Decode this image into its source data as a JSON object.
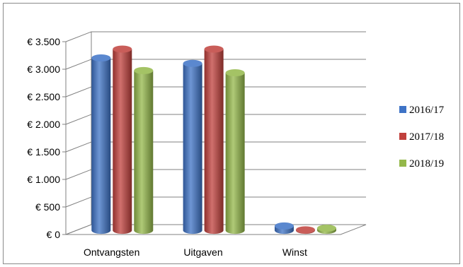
{
  "chart_data": {
    "type": "bar",
    "style": "3d-cylinder",
    "categories": [
      "Ontvangsten",
      "Uitgaven",
      "Winst"
    ],
    "series": [
      {
        "name": "2016/17",
        "color": "#3E73C6",
        "values": [
          3130,
          3030,
          80
        ]
      },
      {
        "name": "2017/18",
        "color": "#C0403C",
        "values": [
          3290,
          3290,
          10
        ]
      },
      {
        "name": "2018/19",
        "color": "#94B84A",
        "values": [
          2900,
          2860,
          40
        ]
      }
    ],
    "ylim": [
      0,
      3500
    ],
    "y_ticks": [
      0,
      500,
      1000,
      1500,
      2000,
      2500,
      3000,
      3500
    ],
    "y_tick_labels": [
      "€ 0",
      "€ 500",
      "€ 1.000",
      "€ 1.500",
      "€ 2.000",
      "€ 2.500",
      "€ 3.000",
      "€ 3.500"
    ],
    "grid": true,
    "legend_position": "right"
  }
}
